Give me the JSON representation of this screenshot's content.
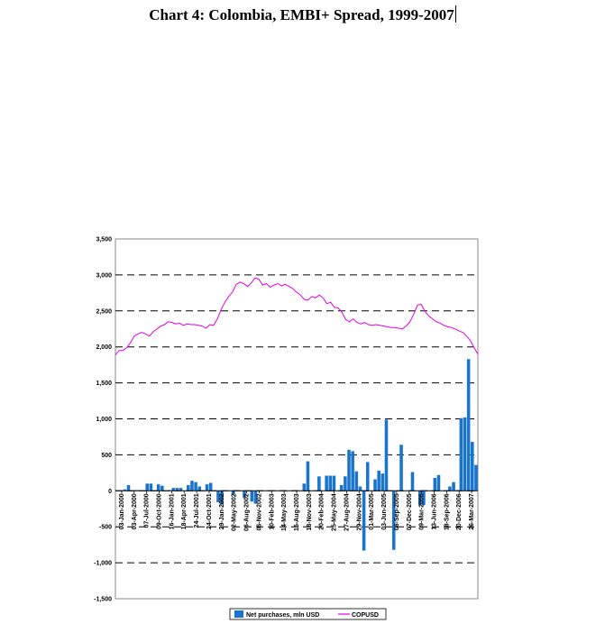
{
  "chart_data": {
    "type": "bar+line",
    "title": "Chart 4: Colombia, EMBI+ Spread, 1999-2007",
    "ylim": [
      -1500,
      3500
    ],
    "yticks": [
      "3,500",
      "3,000",
      "2,500",
      "2,000",
      "1,500",
      "1,000",
      "500",
      "0",
      "-500",
      "-1,000",
      "-1,500"
    ],
    "ytick_values": [
      3500,
      3000,
      2500,
      2000,
      1500,
      1000,
      500,
      0,
      -500,
      -1000,
      -1500
    ],
    "grid": "horizontal dashed",
    "legend_position": "bottom-center",
    "x_tick_labels": [
      "03-Jan-2000",
      "03-Apr-2000",
      "07-Jul-2000",
      "09-Oct-2000",
      "16-Jan-2001",
      "18-Apr-2001",
      "24-Jul-2001",
      "24-Oct-2001",
      "29-Jan-2002",
      "02-May-2002",
      "06-Aug-2002",
      "06-Nov-2002",
      "10-Feb-2003",
      "14-May-2003",
      "15-Aug-2003",
      "18-Nov-2003",
      "20-Feb-2004",
      "25-May-2004",
      "27-Aug-2004",
      "29-Nov-2004",
      "01-Mar-2005",
      "03-Jun-2005",
      "06-Sep-2005",
      "07-Dec-2005",
      "09-Mar-2006",
      "13-Jun-2006",
      "18-Sep-2006",
      "20-Dec-2006",
      "26-Mar-2007"
    ],
    "series": [
      {
        "name": "Net purchases, mln USD",
        "kind": "bar",
        "color": "#1874CD",
        "values": [
          0,
          0,
          20,
          80,
          0,
          10,
          10,
          10,
          100,
          100,
          0,
          90,
          70,
          0,
          10,
          40,
          40,
          40,
          0,
          80,
          140,
          120,
          60,
          0,
          90,
          110,
          0,
          -160,
          -190,
          0,
          0,
          -50,
          0,
          0,
          -100,
          0,
          -150,
          -180,
          0,
          0,
          0,
          0,
          0,
          0,
          0,
          0,
          0,
          0,
          0,
          0,
          100,
          410,
          0,
          0,
          200,
          0,
          210,
          210,
          210,
          0,
          80,
          200,
          570,
          550,
          270,
          60,
          -830,
          400,
          0,
          160,
          280,
          240,
          990,
          0,
          -820,
          0,
          640,
          0,
          0,
          260,
          0,
          -200,
          -200,
          0,
          0,
          180,
          220,
          0,
          0,
          60,
          120,
          0,
          1010,
          1020,
          1830,
          680,
          360
        ]
      },
      {
        "name": "COPUSD",
        "kind": "line",
        "color": "#E600E6",
        "values": [
          1890,
          1950,
          1950,
          1990,
          2060,
          2150,
          2180,
          2200,
          2180,
          2150,
          2210,
          2250,
          2290,
          2310,
          2350,
          2340,
          2320,
          2330,
          2300,
          2320,
          2310,
          2310,
          2300,
          2290,
          2260,
          2310,
          2300,
          2390,
          2520,
          2620,
          2700,
          2760,
          2870,
          2900,
          2880,
          2840,
          2890,
          2960,
          2940,
          2860,
          2880,
          2830,
          2860,
          2880,
          2850,
          2870,
          2840,
          2810,
          2760,
          2720,
          2660,
          2650,
          2700,
          2680,
          2720,
          2680,
          2600,
          2620,
          2550,
          2540,
          2480,
          2380,
          2350,
          2390,
          2340,
          2320,
          2340,
          2310,
          2300,
          2310,
          2300,
          2290,
          2280,
          2270,
          2270,
          2260,
          2250,
          2290,
          2350,
          2450,
          2580,
          2590,
          2490,
          2430,
          2390,
          2350,
          2330,
          2300,
          2280,
          2270,
          2250,
          2220,
          2200,
          2150,
          2090,
          1990,
          1900
        ]
      }
    ]
  }
}
